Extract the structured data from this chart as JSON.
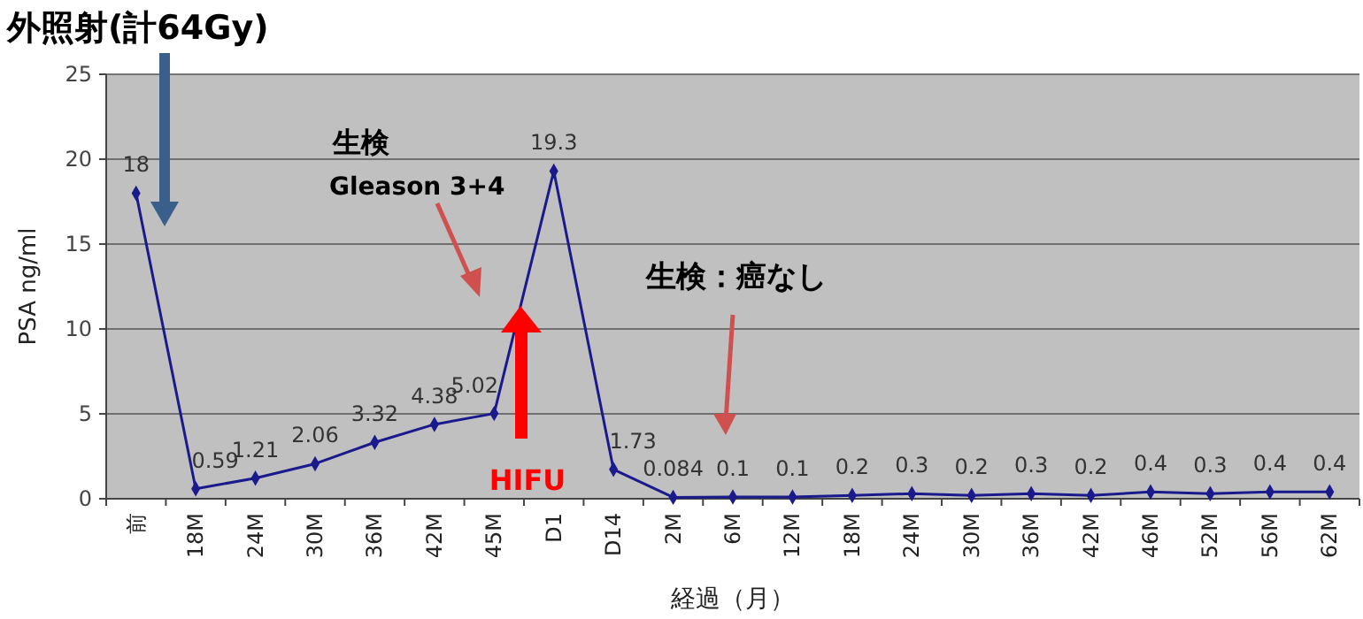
{
  "chart_data": {
    "type": "line",
    "ylabel": "PSA ng/ml",
    "xlabel": "経過（月）",
    "categories": [
      "前",
      "18M",
      "24M",
      "30M",
      "36M",
      "42M",
      "45M",
      "D1",
      "D14",
      "2M",
      "6M",
      "12M",
      "18M",
      "24M",
      "30M",
      "36M",
      "42M",
      "46M",
      "52M",
      "56M",
      "62M"
    ],
    "series": [
      {
        "color": "#1a1a8c",
        "values": [
          18,
          0.59,
          1.21,
          2.06,
          3.32,
          4.38,
          5.02,
          19.3,
          1.73,
          0.084,
          0.1,
          0.1,
          0.2,
          0.3,
          0.2,
          0.3,
          0.2,
          0.4,
          0.3,
          0.4,
          0.4
        ]
      }
    ],
    "ylim": [
      0,
      25
    ],
    "yticks": [
      0,
      5,
      10,
      15,
      20,
      25
    ],
    "grid": "y",
    "marker": "diamond",
    "data_labels": true,
    "annotations": [
      "外照射(計64Gy)",
      "生検",
      "Gleason 3+4",
      "生検：癌なし",
      "HIFU"
    ]
  }
}
